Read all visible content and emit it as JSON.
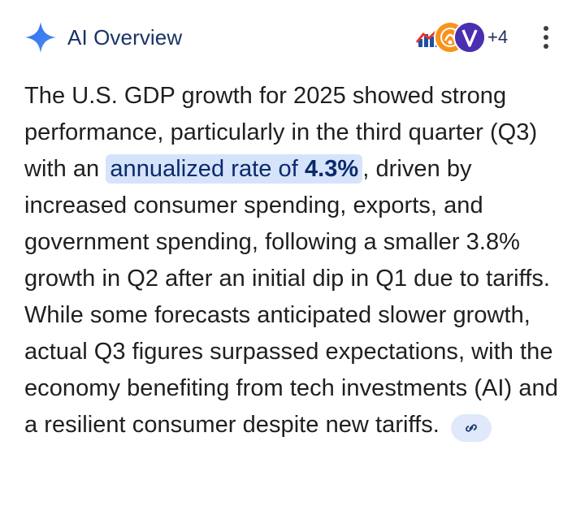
{
  "header": {
    "title": "AI Overview",
    "icon": "ai-sparkle-icon",
    "sources_more": "+4",
    "menu_icon": "more-vert-icon"
  },
  "sources": [
    {
      "name": "source-favicon-chart",
      "color": "#1e4fa3"
    },
    {
      "name": "source-favicon-orange",
      "color": "#f7941d"
    },
    {
      "name": "source-favicon-v",
      "color": "#4a2fb0"
    }
  ],
  "overview": {
    "part1": "The U.S. GDP growth for 2025 showed strong performance, particularly in the third quarter (Q3) with an",
    "highlight_pre": "annualized rate of ",
    "highlight_bold": "4.3%",
    "part2": ", driven by increased consumer spending, exports, and government spending, following a smaller 3.8% growth in Q2 after an initial dip in Q1 due to tariffs. While some forecasts anticipated slower growth, actual Q3 figures surpassed expectations, with the economy benefiting from tech investments (AI) and a resilient consumer despite new tariffs.",
    "link_icon": "link-icon"
  },
  "colors": {
    "title": "#1a3366",
    "highlight_bg": "#d6e4fb",
    "link_chip_bg": "#dfe9fb",
    "sparkle": "#3b7cf2"
  }
}
